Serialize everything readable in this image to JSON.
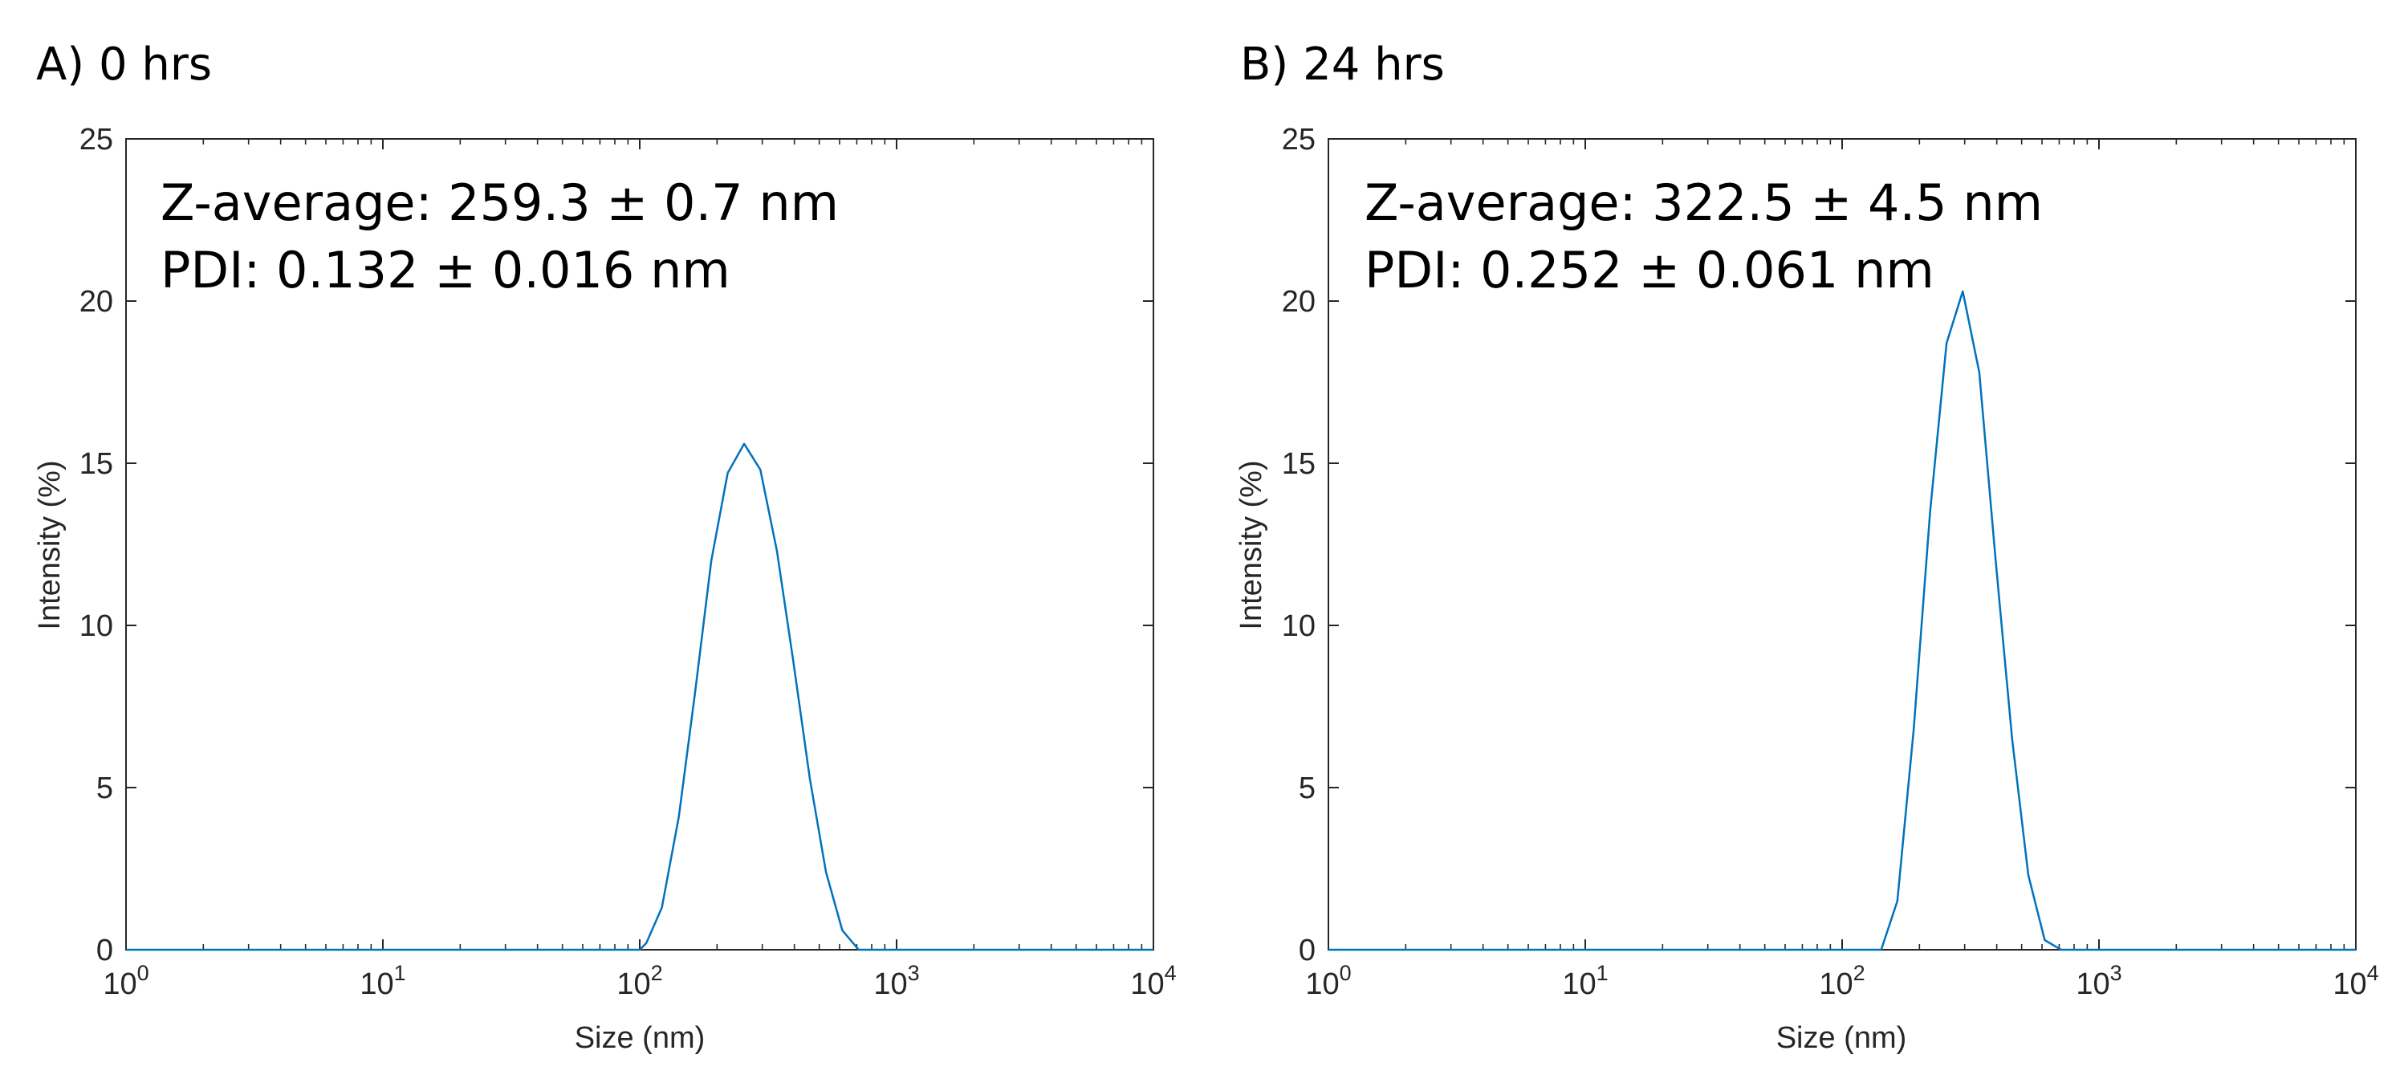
{
  "chart_data": [
    {
      "type": "line",
      "panel_label": "A) 0 hrs",
      "annotations": [
        "Z-average: 259.3 ± 0.7 nm",
        "PDI: 0.132 ± 0.016 nm"
      ],
      "xlabel": "Size (nm)",
      "ylabel": "Intensity (%)",
      "xscale": "log",
      "xlim": [
        1,
        10000
      ],
      "ylim": [
        0,
        25
      ],
      "x_ticks": [
        {
          "base": "10",
          "exp": "0",
          "value": 1
        },
        {
          "base": "10",
          "exp": "1",
          "value": 10
        },
        {
          "base": "10",
          "exp": "2",
          "value": 100
        },
        {
          "base": "10",
          "exp": "3",
          "value": 1000
        },
        {
          "base": "10",
          "exp": "4",
          "value": 10000
        }
      ],
      "y_ticks": [
        "0",
        "5",
        "10",
        "15",
        "20",
        "25"
      ],
      "grid": false,
      "series": [
        {
          "color": "#0072BD",
          "x": [
            1,
            100,
            106,
            122,
            142,
            164,
            190,
            220,
            255,
            295,
            342,
            396,
            459,
            531,
            615,
            712,
            10000
          ],
          "y": [
            0,
            0,
            0.2,
            1.3,
            4.1,
            7.9,
            12.0,
            14.7,
            15.6,
            14.8,
            12.3,
            8.9,
            5.3,
            2.4,
            0.6,
            0,
            0
          ]
        }
      ]
    },
    {
      "type": "line",
      "panel_label": "B) 24 hrs",
      "annotations": [
        "Z-average: 322.5 ± 4.5 nm",
        "PDI: 0.252 ± 0.061 nm"
      ],
      "xlabel": "Size (nm)",
      "ylabel": "Intensity (%)",
      "xscale": "log",
      "xlim": [
        1,
        10000
      ],
      "ylim": [
        0,
        25
      ],
      "x_ticks": [
        {
          "base": "10",
          "exp": "0",
          "value": 1
        },
        {
          "base": "10",
          "exp": "1",
          "value": 10
        },
        {
          "base": "10",
          "exp": "2",
          "value": 100
        },
        {
          "base": "10",
          "exp": "3",
          "value": 1000
        },
        {
          "base": "10",
          "exp": "4",
          "value": 10000
        }
      ],
      "y_ticks": [
        "0",
        "5",
        "10",
        "15",
        "20",
        "25"
      ],
      "grid": false,
      "series": [
        {
          "color": "#0072BD",
          "x": [
            1,
            142,
            164,
            190,
            220,
            255,
            295,
            342,
            396,
            459,
            531,
            615,
            712,
            10000
          ],
          "y": [
            0,
            0,
            1.5,
            6.8,
            13.5,
            18.7,
            20.3,
            17.8,
            12.0,
            6.5,
            2.3,
            0.3,
            0,
            0
          ]
        }
      ]
    }
  ]
}
